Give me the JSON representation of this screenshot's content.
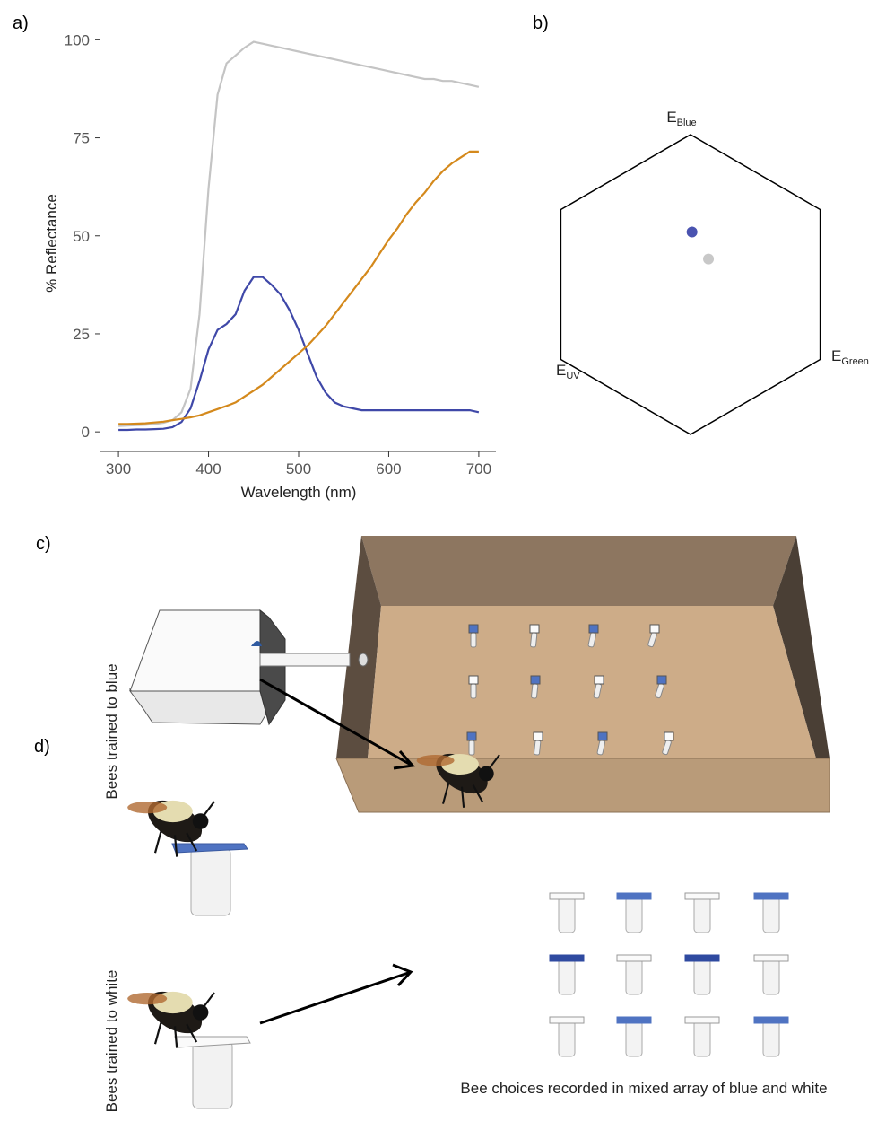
{
  "chart_data": [
    {
      "type": "line",
      "panel_label": "a)",
      "x_label": "Wavelength (nm)",
      "y_label": "% Reflectance",
      "xlim": [
        280,
        719
      ],
      "ylim": [
        -5,
        101
      ],
      "xticks": [
        300,
        400,
        500,
        600,
        700
      ],
      "yticks": [
        0,
        25,
        50,
        75,
        100
      ],
      "x": [
        300,
        310,
        320,
        330,
        340,
        350,
        360,
        370,
        380,
        390,
        400,
        410,
        420,
        430,
        440,
        450,
        460,
        470,
        480,
        490,
        500,
        510,
        520,
        530,
        540,
        550,
        560,
        570,
        580,
        590,
        600,
        610,
        620,
        630,
        640,
        650,
        660,
        670,
        680,
        690,
        700
      ],
      "series": [
        {
          "color": "#c4c4c4",
          "values": [
            1.5,
            1.6,
            1.7,
            1.8,
            2,
            2.3,
            3,
            5,
            11,
            30,
            62,
            86,
            94,
            96,
            98,
            99.5,
            99,
            98.5,
            98,
            97.5,
            97,
            96.5,
            96,
            95.5,
            95,
            94.5,
            94,
            93.5,
            93,
            92.5,
            92,
            91.5,
            91,
            90.5,
            90,
            90,
            89.5,
            89.5,
            89,
            88.5,
            88
          ]
        },
        {
          "color": "#3f48a8",
          "values": [
            0.5,
            0.5,
            0.6,
            0.6,
            0.7,
            0.8,
            1.2,
            2.5,
            6,
            13,
            21,
            26,
            27.5,
            30,
            36,
            39.5,
            39.5,
            37.5,
            35,
            31,
            26,
            20,
            14,
            10,
            7.5,
            6.5,
            6,
            5.5,
            5.5,
            5.5,
            5.5,
            5.5,
            5.5,
            5.5,
            5.5,
            5.5,
            5.5,
            5.5,
            5.5,
            5.5,
            5
          ]
        },
        {
          "color": "#d4891c",
          "values": [
            2,
            2,
            2.1,
            2.2,
            2.4,
            2.6,
            3,
            3.3,
            3.7,
            4.2,
            5,
            5.8,
            6.6,
            7.5,
            9,
            10.5,
            12,
            14,
            16,
            18,
            20,
            22,
            24.5,
            27,
            30,
            33,
            36,
            39,
            42,
            45.5,
            49,
            52,
            55.5,
            58.5,
            61,
            64,
            66.5,
            68.5,
            70,
            71.5,
            71.5
          ]
        }
      ]
    },
    {
      "type": "scatter",
      "panel_label": "b)",
      "xlim": [
        -1,
        1
      ],
      "ylim": [
        -1,
        1
      ],
      "vertex_labels": [
        {
          "main": "E",
          "sub": "Blue"
        },
        {
          "main": "E",
          "sub": "Green"
        },
        {
          "main": "E",
          "sub": "UV"
        }
      ],
      "series": [
        {
          "color": "#4a53b0",
          "x": [
            0.01
          ],
          "values": [
            0.35
          ]
        },
        {
          "color": "#c8c8c8",
          "x": [
            0.12
          ],
          "values": [
            0.17
          ]
        }
      ]
    }
  ],
  "illustration": {
    "panel_label_c": "c)",
    "panel_label_d": "d)",
    "caption_blue": "Bees trained to blue",
    "caption_white": "Bees trained to white",
    "caption_array": "Bee choices recorded in mixed array of blue and white"
  }
}
